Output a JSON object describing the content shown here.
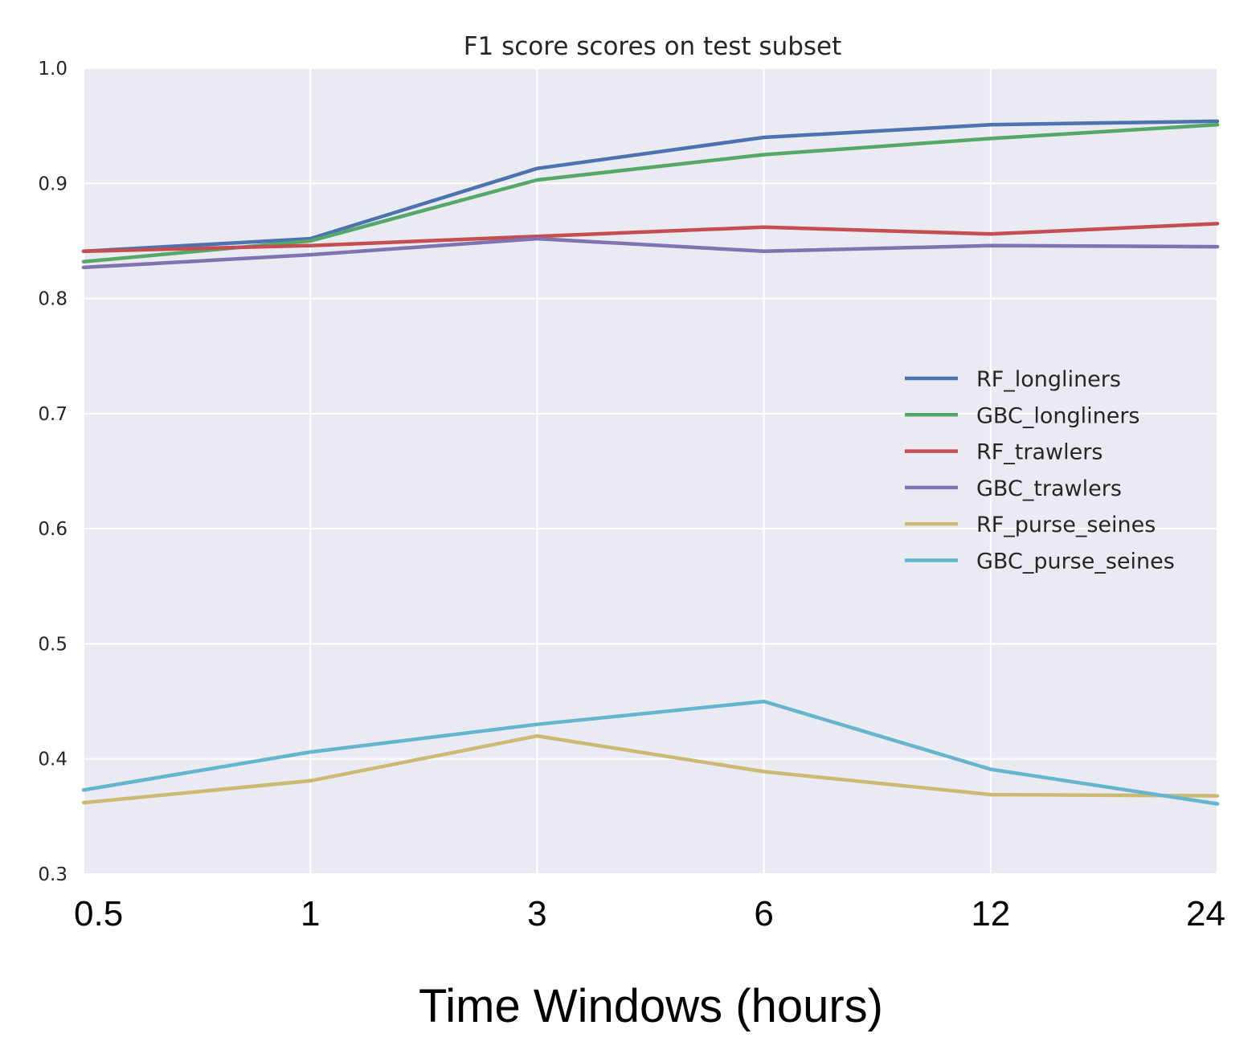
{
  "chart_data": {
    "type": "line",
    "title": "F1 score scores on test subset",
    "xlabel": "Time Windows (hours)",
    "ylabel": "",
    "x": [
      "0.5",
      "1",
      "3",
      "6",
      "12",
      "24"
    ],
    "ylim": [
      0.3,
      1.0
    ],
    "yticks": [
      "0.3",
      "0.4",
      "0.5",
      "0.6",
      "0.7",
      "0.8",
      "0.9",
      "1.0"
    ],
    "grid": true,
    "legend_position": "right",
    "series": [
      {
        "name": "RF_longliners",
        "color": "#4c72b0",
        "values": [
          0.841,
          0.852,
          0.913,
          0.94,
          0.951,
          0.954
        ]
      },
      {
        "name": "GBC_longliners",
        "color": "#55a868",
        "values": [
          0.832,
          0.85,
          0.903,
          0.925,
          0.939,
          0.951
        ]
      },
      {
        "name": "RF_trawlers",
        "color": "#c44e52",
        "values": [
          0.841,
          0.846,
          0.854,
          0.862,
          0.856,
          0.865
        ]
      },
      {
        "name": "GBC_trawlers",
        "color": "#8172b2",
        "values": [
          0.827,
          0.838,
          0.852,
          0.841,
          0.846,
          0.845
        ]
      },
      {
        "name": "RF_purse_seines",
        "color": "#ccb974",
        "values": [
          0.362,
          0.381,
          0.42,
          0.389,
          0.369,
          0.368
        ]
      },
      {
        "name": "GBC_purse_seines",
        "color": "#64b5cd",
        "values": [
          0.373,
          0.406,
          0.43,
          0.45,
          0.391,
          0.361
        ]
      }
    ]
  }
}
